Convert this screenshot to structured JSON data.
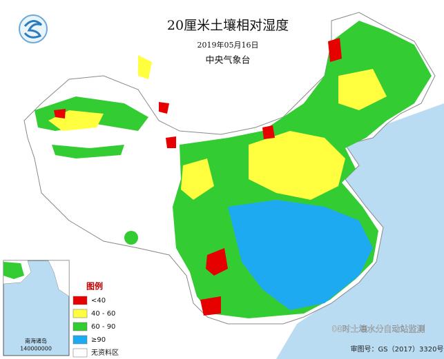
{
  "header": {
    "title": "20厘米土壤相对湿度",
    "date": "2019年05月16日",
    "agency": "中央气象台"
  },
  "legend": {
    "title": "图例",
    "items": [
      {
        "label": "<40",
        "color": "#e60000"
      },
      {
        "label": "40 - 60",
        "color": "#ffff40"
      },
      {
        "label": "60 - 90",
        "color": "#33cc33"
      },
      {
        "label": "≥90",
        "color": "#1eaaf0"
      },
      {
        "label": "无资料区",
        "color": "#ffffff"
      }
    ]
  },
  "inset": {
    "label": "南海诸岛",
    "scale": "140000000"
  },
  "footer": {
    "note": "08时土壤水分自动站监测",
    "approval": "审图号：GS（2017）3320号"
  }
}
